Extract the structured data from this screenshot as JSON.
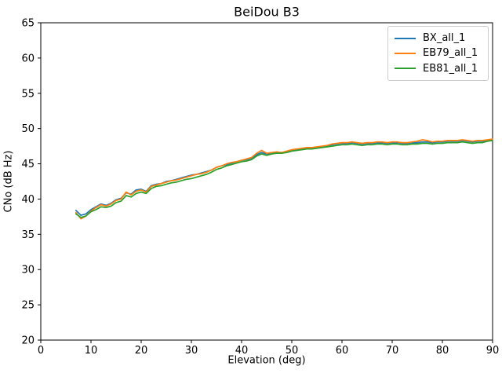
{
  "figure": {
    "title": "BeiDou B3",
    "xlabel": "Elevation (deg)",
    "ylabel": "CNo (dB Hz)"
  },
  "chart_data": {
    "type": "line",
    "title": "BeiDou B3",
    "xlabel": "Elevation (deg)",
    "ylabel": "CNo (dB Hz)",
    "xlim": [
      0,
      90
    ],
    "ylim": [
      20,
      65
    ],
    "xticks": [
      0,
      10,
      20,
      30,
      40,
      50,
      60,
      70,
      80,
      90
    ],
    "yticks": [
      20,
      25,
      30,
      35,
      40,
      45,
      50,
      55,
      60,
      65
    ],
    "grid": false,
    "legend_position": "upper right",
    "axis_color": "#000000",
    "x": [
      7,
      8,
      9,
      10,
      11,
      12,
      13,
      14,
      15,
      16,
      17,
      18,
      19,
      20,
      21,
      22,
      23,
      24,
      25,
      26,
      27,
      28,
      29,
      30,
      31,
      32,
      33,
      34,
      35,
      36,
      37,
      38,
      39,
      40,
      41,
      42,
      43,
      44,
      45,
      46,
      47,
      48,
      49,
      50,
      51,
      52,
      53,
      54,
      55,
      56,
      57,
      58,
      59,
      60,
      61,
      62,
      63,
      64,
      65,
      66,
      67,
      68,
      69,
      70,
      71,
      72,
      73,
      74,
      75,
      76,
      77,
      78,
      79,
      80,
      81,
      82,
      83,
      84,
      85,
      86,
      87,
      88,
      89,
      90
    ],
    "series": [
      {
        "name": "BX_all_1",
        "color": "#1f77b4",
        "values": [
          38.4,
          37.7,
          37.9,
          38.5,
          38.9,
          39.3,
          39.1,
          39.4,
          39.9,
          40.1,
          40.9,
          40.7,
          41.3,
          41.4,
          41.1,
          41.9,
          42.1,
          42.2,
          42.5,
          42.6,
          42.8,
          43.0,
          43.2,
          43.4,
          43.5,
          43.7,
          43.9,
          44.1,
          44.5,
          44.7,
          44.9,
          45.1,
          45.3,
          45.5,
          45.6,
          45.8,
          46.3,
          46.6,
          46.4,
          46.5,
          46.6,
          46.6,
          46.7,
          46.9,
          47.0,
          47.1,
          47.2,
          47.2,
          47.3,
          47.4,
          47.5,
          47.7,
          47.8,
          47.9,
          47.9,
          48.0,
          47.9,
          47.8,
          47.9,
          47.9,
          48.0,
          48.0,
          47.9,
          48.0,
          48.0,
          47.9,
          47.9,
          48.0,
          48.0,
          48.1,
          48.1,
          48.0,
          48.1,
          48.1,
          48.2,
          48.2,
          48.2,
          48.3,
          48.2,
          48.1,
          48.2,
          48.2,
          48.3,
          48.4
        ]
      },
      {
        "name": "EB79_all_1",
        "color": "#ff7f0e",
        "values": [
          38.1,
          37.2,
          37.6,
          38.3,
          38.8,
          39.2,
          39.0,
          39.3,
          39.8,
          40.0,
          41.0,
          40.6,
          41.1,
          41.3,
          41.0,
          41.8,
          42.0,
          42.2,
          42.4,
          42.6,
          42.7,
          42.9,
          43.1,
          43.3,
          43.5,
          43.6,
          43.8,
          44.1,
          44.5,
          44.7,
          45.0,
          45.2,
          45.3,
          45.5,
          45.7,
          45.9,
          46.5,
          46.9,
          46.5,
          46.6,
          46.7,
          46.6,
          46.8,
          47.0,
          47.1,
          47.2,
          47.3,
          47.3,
          47.4,
          47.5,
          47.6,
          47.8,
          47.9,
          48.0,
          48.0,
          48.1,
          48.0,
          47.9,
          48.0,
          48.0,
          48.1,
          48.1,
          48.0,
          48.1,
          48.1,
          48.0,
          48.0,
          48.1,
          48.2,
          48.4,
          48.3,
          48.1,
          48.2,
          48.2,
          48.3,
          48.3,
          48.3,
          48.4,
          48.3,
          48.2,
          48.3,
          48.3,
          48.4,
          48.5
        ]
      },
      {
        "name": "EB81_all_1",
        "color": "#2ca02c",
        "values": [
          37.9,
          37.4,
          37.6,
          38.2,
          38.5,
          38.9,
          38.8,
          39.0,
          39.5,
          39.7,
          40.5,
          40.3,
          40.8,
          41.0,
          40.8,
          41.5,
          41.8,
          41.9,
          42.1,
          42.3,
          42.4,
          42.6,
          42.8,
          42.9,
          43.1,
          43.3,
          43.5,
          43.8,
          44.2,
          44.4,
          44.7,
          44.9,
          45.1,
          45.3,
          45.4,
          45.6,
          46.1,
          46.4,
          46.2,
          46.4,
          46.5,
          46.5,
          46.6,
          46.8,
          46.9,
          47.0,
          47.1,
          47.1,
          47.2,
          47.3,
          47.4,
          47.5,
          47.6,
          47.7,
          47.7,
          47.8,
          47.7,
          47.6,
          47.7,
          47.7,
          47.8,
          47.8,
          47.7,
          47.8,
          47.8,
          47.7,
          47.7,
          47.8,
          47.8,
          47.9,
          47.9,
          47.8,
          47.9,
          47.9,
          48.0,
          48.0,
          48.0,
          48.1,
          48.0,
          47.9,
          48.0,
          48.0,
          48.2,
          48.3
        ]
      }
    ]
  }
}
